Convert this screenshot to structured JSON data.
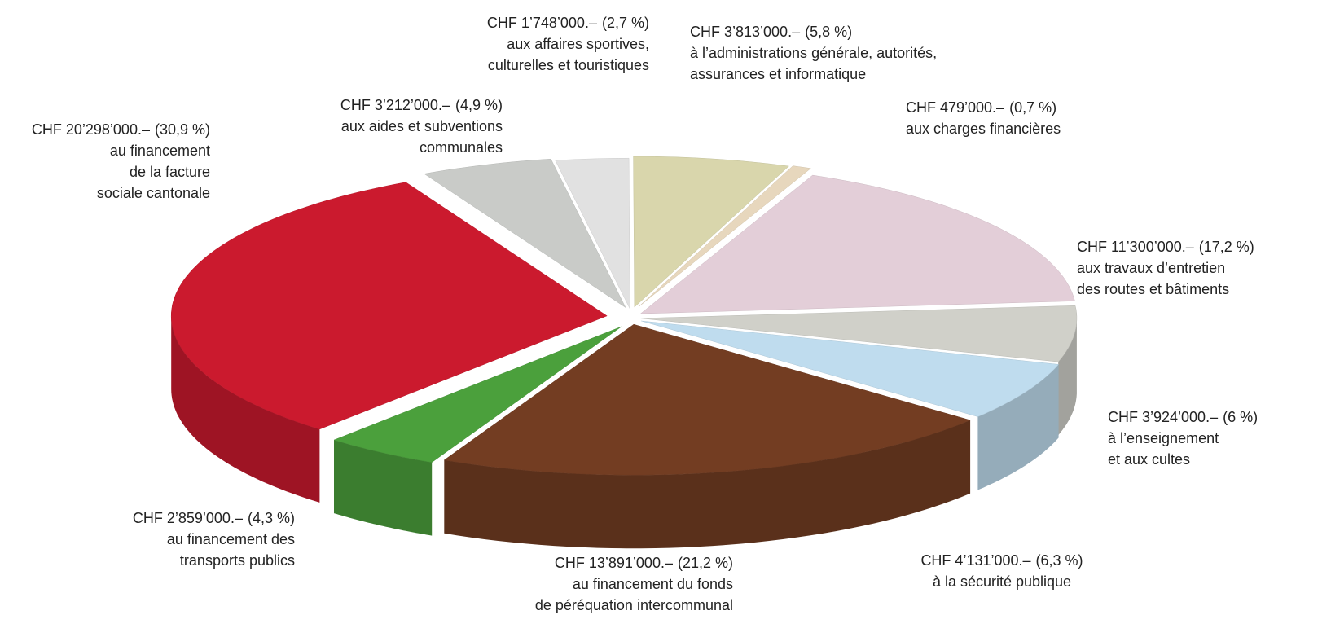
{
  "chart_data": {
    "type": "pie3d",
    "amount_labels": [
      "CHF 3’212’000.–",
      "CHF 1’748’000.–",
      "CHF 3’813’000.–",
      "CHF 479’000.–",
      "CHF 11’300’000.–",
      "CHF 3’924’000.–",
      "CHF 4’131’000.–",
      "CHF 13’891’000.–",
      "CHF 2’859’000.–",
      "CHF 20’298’000.–"
    ],
    "value_labels": [
      "(4,9 %)",
      "(2,7 %)",
      "(5,8 %)",
      "(0,7 %)",
      "(17,2 %)",
      "(6 %)",
      "(6,3 %)",
      "(21,2 %)",
      "(4,3 %)",
      "(30,9 %)"
    ],
    "values": [
      4.9,
      2.7,
      5.8,
      0.7,
      17.2,
      6,
      6.3,
      21.2,
      4.3,
      30.9
    ],
    "categories": [
      [
        "aux aides et subventions",
        "communales"
      ],
      [
        "aux affaires sportives,",
        "culturelles et touristiques"
      ],
      [
        "à l’administrations générale, autorités,",
        "assurances et informatique"
      ],
      [
        "aux charges financières"
      ],
      [
        "aux travaux d’entretien",
        "des routes et bâtiments"
      ],
      [
        "à l’enseignement",
        "et aux cultes"
      ],
      [
        "à la sécurité publique"
      ],
      [
        "au financement du fonds",
        "de péréquation intercommunal"
      ],
      [
        "au financement des",
        "transports publics"
      ],
      [
        "au financement",
        "de la facture",
        "sociale cantonale"
      ]
    ],
    "colors": [
      "#c9cbc8",
      "#e1e1e1",
      "#d9d6ac",
      "#e7d7bd",
      "#e3ced8",
      "#d0d0c9",
      "#bfdcee",
      "#733d22",
      "#4ba03c",
      "#cb1a2e"
    ]
  }
}
